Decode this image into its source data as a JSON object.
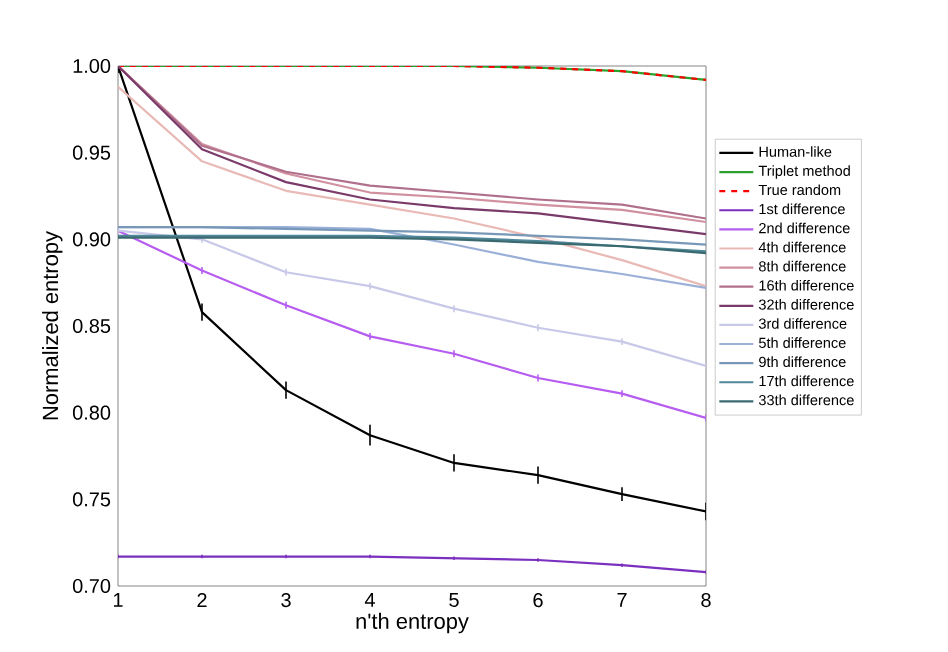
{
  "chart_data": {
    "type": "line",
    "xlabel": "n'th entropy",
    "ylabel": "Normalized entropy",
    "x": [
      1,
      2,
      3,
      4,
      5,
      6,
      7,
      8
    ],
    "xlim": [
      1,
      8
    ],
    "ylim": [
      0.7,
      1.0
    ],
    "xticks": [
      1,
      2,
      3,
      4,
      5,
      6,
      7,
      8
    ],
    "yticks": [
      {
        "value": 0.7,
        "label": "0.70"
      },
      {
        "value": 0.75,
        "label": "0.75"
      },
      {
        "value": 0.8,
        "label": "0.80"
      },
      {
        "value": 0.85,
        "label": "0.85"
      },
      {
        "value": 0.9,
        "label": "0.90"
      },
      {
        "value": 0.95,
        "label": "0.95"
      },
      {
        "value": 1.0,
        "label": "1.00"
      }
    ],
    "legend": "right",
    "grid": false,
    "marker": "none",
    "series": [
      {
        "name": "Human-like",
        "color": "#000000",
        "values": [
          1.0,
          0.858,
          0.813,
          0.787,
          0.771,
          0.764,
          0.753,
          0.743
        ],
        "errors": [
          0.004,
          0.005,
          0.005,
          0.006,
          0.005,
          0.005,
          0.004,
          0.005
        ]
      },
      {
        "name": "Triplet method",
        "color": "#2ca02c",
        "values": [
          1.0,
          1.0,
          1.0,
          1.0,
          1.0,
          0.999,
          0.997,
          0.992
        ]
      },
      {
        "name": "True random",
        "color": "#ff0000",
        "line_style": "dashed",
        "values": [
          1.0,
          1.0,
          1.0,
          1.0,
          1.0,
          0.999,
          0.997,
          0.992
        ]
      },
      {
        "name": "1st difference",
        "color": "#7b2fbf",
        "values": [
          0.717,
          0.717,
          0.717,
          0.717,
          0.716,
          0.715,
          0.712,
          0.708
        ],
        "errors": [
          0.001,
          0.001,
          0.001,
          0.001,
          0.001,
          0.001,
          0.001,
          0.001
        ]
      },
      {
        "name": "2nd difference",
        "color": "#b65cf0",
        "values": [
          0.905,
          0.882,
          0.862,
          0.844,
          0.834,
          0.82,
          0.811,
          0.797
        ],
        "errors": [
          0.002,
          0.002,
          0.002,
          0.002,
          0.002,
          0.002,
          0.002,
          0.002
        ]
      },
      {
        "name": "4th difference",
        "color": "#e8b9b5",
        "values": [
          0.988,
          0.945,
          0.928,
          0.92,
          0.912,
          0.901,
          0.888,
          0.873
        ]
      },
      {
        "name": "8th difference",
        "color": "#d090a0",
        "values": [
          1.0,
          0.955,
          0.938,
          0.927,
          0.924,
          0.92,
          0.917,
          0.91
        ]
      },
      {
        "name": "16th difference",
        "color": "#b0708c",
        "values": [
          1.0,
          0.954,
          0.939,
          0.931,
          0.927,
          0.923,
          0.92,
          0.912
        ]
      },
      {
        "name": "32th difference",
        "color": "#7a3a6a",
        "values": [
          1.0,
          0.952,
          0.933,
          0.923,
          0.918,
          0.915,
          0.909,
          0.903
        ]
      },
      {
        "name": "3rd difference",
        "color": "#c8c8e8",
        "values": [
          0.905,
          0.9,
          0.881,
          0.873,
          0.86,
          0.849,
          0.841,
          0.827
        ],
        "errors": [
          0.002,
          0.002,
          0.002,
          0.002,
          0.002,
          0.002,
          0.002,
          0.002
        ]
      },
      {
        "name": "5th difference",
        "color": "#9ab0d8",
        "values": [
          0.907,
          0.907,
          0.907,
          0.906,
          0.897,
          0.887,
          0.88,
          0.872
        ]
      },
      {
        "name": "9th difference",
        "color": "#7898b8",
        "values": [
          0.907,
          0.907,
          0.906,
          0.905,
          0.904,
          0.902,
          0.9,
          0.897
        ]
      },
      {
        "name": "17th difference",
        "color": "#50889a",
        "values": [
          0.902,
          0.902,
          0.902,
          0.902,
          0.901,
          0.899,
          0.896,
          0.893
        ]
      },
      {
        "name": "33th difference",
        "color": "#3a6a70",
        "values": [
          0.901,
          0.901,
          0.901,
          0.901,
          0.9,
          0.898,
          0.896,
          0.892
        ]
      }
    ]
  }
}
